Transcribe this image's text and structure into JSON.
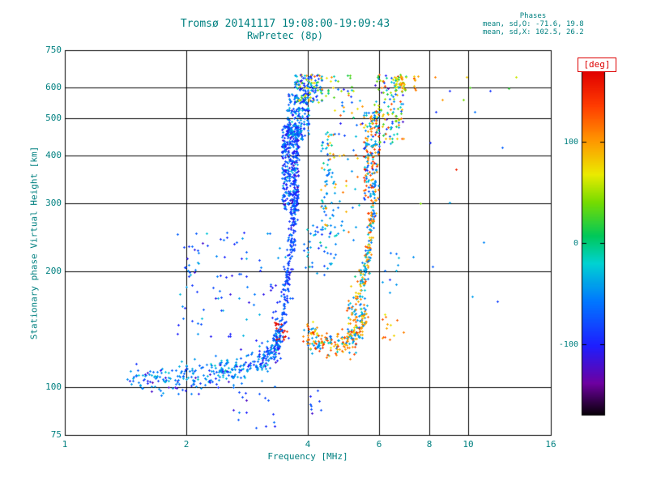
{
  "chart_data": {
    "type": "scatter",
    "title": "Tromsø 20141117 19:08:00-19:09:43",
    "subtitle": "RwPretec (8p)",
    "annotations": {
      "header": "Phases",
      "line_o": "mean, sd,O: -71.6, 19.8",
      "line_x": "mean, sd,X: 102.5, 26.2"
    },
    "xlabel": "Frequency [MHz]",
    "ylabel": "Stationary phase Virtual Height [km]",
    "x_scale": "log",
    "x_range": [
      1,
      16
    ],
    "x_ticks": [
      1,
      2,
      4,
      6,
      8,
      10,
      16
    ],
    "x_gridlines": [
      2,
      4,
      6,
      8,
      10
    ],
    "y_scale": "log",
    "y_range": [
      75,
      750
    ],
    "y_ticks": [
      750,
      600,
      500,
      400,
      300,
      200,
      100,
      75
    ],
    "y_gridlines": [
      100,
      200,
      300,
      400,
      500,
      600
    ],
    "grid": true,
    "colorbar": {
      "label": "[deg]",
      "range": [
        -170,
        170
      ],
      "ticks": [
        100,
        0,
        -100
      ],
      "colormap": "rainbow"
    },
    "series_stats": {
      "O": {
        "mean": -71.6,
        "sd": 19.8
      },
      "X": {
        "mean": 102.5,
        "sd": 26.2
      }
    },
    "colors": {
      "text": "#008080",
      "frame": "#000000",
      "background": "#ffffff",
      "deg_label": "#dd0000"
    },
    "clusters": [
      {
        "name": "o-trace-base",
        "type": "path",
        "n": 380,
        "path": [
          [
            1.45,
            106
          ],
          [
            1.8,
            105
          ],
          [
            2.2,
            108
          ],
          [
            2.6,
            111
          ],
          [
            3.0,
            115
          ],
          [
            3.25,
            122
          ],
          [
            3.45,
            138
          ]
        ],
        "yjit": 5,
        "phase": {
          "mix": [
            {
              "m": -48,
              "s": 14,
              "w": 0.7
            },
            {
              "m": -100,
              "s": 14,
              "w": 0.3
            }
          ]
        }
      },
      {
        "name": "o-trace-spray",
        "type": "box",
        "n": 85,
        "x": [
          1.85,
          3.4
        ],
        "y": [
          124,
          255
        ],
        "phase": {
          "mix": [
            {
              "m": -55,
              "s": 18,
              "w": 0.55
            },
            {
              "m": -100,
              "s": 15,
              "w": 0.45
            }
          ]
        }
      },
      {
        "name": "mini-cluster",
        "type": "box",
        "n": 10,
        "x": [
          2.0,
          2.2
        ],
        "y": [
          200,
          240
        ],
        "phase": {
          "m": -65,
          "s": 18
        }
      },
      {
        "name": "o-cusp",
        "type": "path",
        "n": 250,
        "path": [
          [
            3.3,
            128
          ],
          [
            3.45,
            150
          ],
          [
            3.55,
            185
          ],
          [
            3.63,
            230
          ],
          [
            3.69,
            280
          ],
          [
            3.73,
            330
          ]
        ],
        "yjit": 16,
        "phase": {
          "m": -82,
          "s": 16
        }
      },
      {
        "name": "o-column",
        "type": "box",
        "n": 360,
        "x": [
          3.45,
          3.8
        ],
        "y": [
          285,
          480
        ],
        "phase": {
          "mix": [
            {
              "m": -92,
              "s": 16,
              "w": 0.65
            },
            {
              "m": -48,
              "s": 12,
              "w": 0.35
            }
          ]
        }
      },
      {
        "name": "o-column-upper",
        "type": "box",
        "n": 170,
        "x": [
          3.55,
          4.02
        ],
        "y": [
          440,
          580
        ],
        "phase": {
          "mix": [
            {
              "m": -75,
              "s": 20,
              "w": 0.6
            },
            {
              "m": -40,
              "s": 12,
              "w": 0.4
            }
          ]
        }
      },
      {
        "name": "o-top-spread",
        "type": "box",
        "n": 150,
        "x": [
          3.7,
          4.35
        ],
        "y": [
          550,
          650
        ],
        "phase": {
          "mix": [
            {
              "m": -50,
              "s": 25,
              "w": 0.5
            },
            {
              "m": -100,
              "s": 15,
              "w": 0.2
            },
            {
              "m": 70,
              "s": 38,
              "w": 0.3
            }
          ]
        }
      },
      {
        "name": "top-sparse-mid",
        "type": "box",
        "n": 25,
        "x": [
          4.4,
          5.2
        ],
        "y": [
          555,
          650
        ],
        "phase": {
          "uniform": [
            -110,
            120
          ]
        }
      },
      {
        "name": "gap-scatter-high",
        "type": "box",
        "n": 20,
        "x": [
          4.6,
          5.5
        ],
        "y": [
          440,
          560
        ],
        "phase": {
          "mix": [
            {
              "m": -55,
              "s": 25,
              "w": 0.7
            },
            {
              "m": 100,
              "s": 25,
              "w": 0.3
            }
          ]
        }
      },
      {
        "name": "offshoot-column",
        "type": "box",
        "n": 65,
        "x": [
          4.3,
          4.62
        ],
        "y": [
          255,
          460
        ],
        "phase": {
          "mix": [
            {
              "m": -45,
              "s": 18,
              "w": 0.7
            },
            {
              "m": 100,
              "s": 25,
              "w": 0.3
            }
          ]
        }
      },
      {
        "name": "mid-scatter",
        "type": "box",
        "n": 45,
        "x": [
          3.9,
          4.7
        ],
        "y": [
          195,
          265
        ],
        "phase": {
          "m": -52,
          "s": 20
        }
      },
      {
        "name": "x-trace-base",
        "type": "path",
        "n": 230,
        "path": [
          [
            3.95,
            140
          ],
          [
            4.2,
            132
          ],
          [
            4.6,
            129
          ],
          [
            5.0,
            133
          ],
          [
            5.3,
            141
          ],
          [
            5.6,
            154
          ]
        ],
        "yjit": 6,
        "phase": {
          "mix": [
            {
              "m": 108,
              "s": 22,
              "w": 0.62
            },
            {
              "m": -42,
              "s": 14,
              "w": 0.38
            }
          ]
        }
      },
      {
        "name": "deep-red-patch",
        "type": "box",
        "n": 16,
        "x": [
          3.3,
          3.55
        ],
        "y": [
          131,
          148
        ],
        "phase": {
          "m": 160,
          "s": 10
        }
      },
      {
        "name": "x-riser",
        "type": "path",
        "n": 210,
        "path": [
          [
            5.0,
            150
          ],
          [
            5.25,
            164
          ],
          [
            5.45,
            184
          ],
          [
            5.6,
            214
          ],
          [
            5.72,
            254
          ],
          [
            5.82,
            300
          ]
        ],
        "yjit": 14,
        "phase": {
          "mix": [
            {
              "m": -40,
              "s": 16,
              "w": 0.55
            },
            {
              "m": 105,
              "s": 22,
              "w": 0.45
            }
          ]
        }
      },
      {
        "name": "x-column",
        "type": "box",
        "n": 185,
        "x": [
          5.5,
          6.0
        ],
        "y": [
          300,
          525
        ],
        "phase": {
          "mix": [
            {
              "m": -55,
              "s": 20,
              "w": 0.55
            },
            {
              "m": 115,
              "s": 25,
              "w": 0.45
            }
          ]
        }
      },
      {
        "name": "x-top-spread",
        "type": "box",
        "n": 125,
        "x": [
          5.85,
          6.9
        ],
        "y": [
          430,
          650
        ],
        "phase": {
          "uniform": [
            -130,
            140
          ]
        }
      },
      {
        "name": "top-green-cluster",
        "type": "box",
        "n": 24,
        "x": [
          6.55,
          7.0
        ],
        "y": [
          585,
          650
        ],
        "phase": {
          "m": 60,
          "s": 40
        }
      },
      {
        "name": "dotted-line",
        "type": "box",
        "n": 12,
        "x": [
          6.78,
          6.85
        ],
        "y": [
          588,
          648
        ],
        "phase": {
          "m": 95,
          "s": 15
        }
      },
      {
        "name": "dotted-line-2",
        "type": "box",
        "n": 8,
        "x": [
          7.33,
          7.4
        ],
        "y": [
          590,
          645
        ],
        "phase": {
          "m": 95,
          "s": 15
        }
      },
      {
        "name": "mid-right-high",
        "type": "box",
        "n": 10,
        "x": [
          6.0,
          6.9
        ],
        "y": [
          175,
          225
        ],
        "phase": {
          "m": -45,
          "s": 20
        }
      },
      {
        "name": "below-e-tail",
        "type": "box",
        "n": 16,
        "x": [
          2.6,
          3.35
        ],
        "y": [
          78,
          99
        ],
        "phase": {
          "m": -85,
          "s": 16
        }
      },
      {
        "name": "below-x-tail",
        "type": "box",
        "n": 8,
        "x": [
          4.0,
          4.35
        ],
        "y": [
          84,
          100
        ],
        "phase": {
          "m": -80,
          "s": 14
        }
      },
      {
        "name": "low-orange-right",
        "type": "box",
        "n": 12,
        "x": [
          6.1,
          6.7
        ],
        "y": [
          128,
          155
        ],
        "phase": {
          "m": 105,
          "s": 20
        }
      },
      {
        "name": "mid-right-scatter",
        "type": "box",
        "n": 30,
        "x": [
          4.6,
          5.35
        ],
        "y": [
          240,
          430
        ],
        "phase": {
          "mix": [
            {
              "m": -45,
              "s": 20,
              "w": 0.6
            },
            {
              "m": 100,
              "s": 25,
              "w": 0.4
            }
          ]
        }
      }
    ],
    "outliers": [
      [
        7.0,
        640,
        60
      ],
      [
        6.92,
        612,
        85
      ],
      [
        7.5,
        641,
        95
      ],
      [
        8.25,
        638,
        110
      ],
      [
        8.3,
        520,
        -90
      ],
      [
        8.05,
        432,
        -95
      ],
      [
        9.0,
        588,
        -95
      ],
      [
        9.3,
        368,
        150
      ],
      [
        9.7,
        558,
        40
      ],
      [
        10.1,
        600,
        30
      ],
      [
        11.3,
        588,
        -90
      ],
      [
        12.6,
        598,
        20
      ],
      [
        13.1,
        640,
        60
      ],
      [
        8.15,
        206,
        -70
      ],
      [
        10.2,
        172,
        -42
      ],
      [
        11.8,
        167,
        -85
      ],
      [
        7.3,
        218,
        -48
      ],
      [
        6.9,
        139,
        110
      ],
      [
        7.6,
        300,
        42
      ],
      [
        9.0,
        302,
        -40
      ],
      [
        10.35,
        520,
        -60
      ],
      [
        8.6,
        558,
        100
      ],
      [
        9.9,
        640,
        82
      ],
      [
        10.9,
        238,
        -52
      ],
      [
        12.1,
        420,
        -68
      ]
    ]
  }
}
